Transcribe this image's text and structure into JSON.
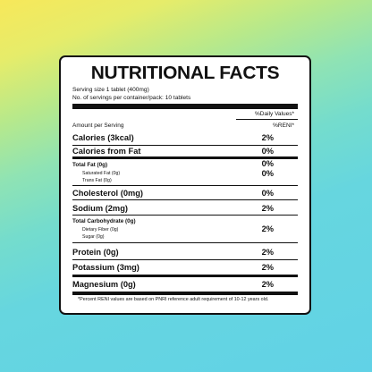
{
  "title": "NUTRITIONAL FACTS",
  "serving_size": "Serving size 1 tablet (400mg)",
  "servings_per_container": "No. of servings per container/pack: 10 tablets",
  "daily_values_header": "%Daily Values*",
  "amount_per_serving": "Amount per Serving",
  "reni_header": "%RENI*",
  "rows": {
    "calories": {
      "label": "Calories (3kcal)",
      "value": "2%"
    },
    "calories_from_fat": {
      "label": "Calories from Fat",
      "value": "0%"
    },
    "total_fat": {
      "label": "Total Fat (0g)",
      "value": "0%"
    },
    "saturated_fat": {
      "label": "Saturated Fat (0g)",
      "value": "0%"
    },
    "trans_fat": {
      "label": "Trans Fat (0g)"
    },
    "cholesterol": {
      "label": "Cholesterol (0mg)",
      "value": "0%"
    },
    "sodium": {
      "label": "Sodium (2mg)",
      "value": "2%"
    },
    "total_carbohydrate": {
      "label": "Total Carbohydrate (0g)"
    },
    "dietary_fiber": {
      "label": "Dietary Fiber (0g)",
      "value": "2%"
    },
    "sugar": {
      "label": "Sugar (0g)"
    },
    "protein": {
      "label": "Protein (0g)",
      "value": "2%"
    },
    "potassium": {
      "label": "Potassium (3mg)",
      "value": "2%"
    },
    "magnesium": {
      "label": "Magnesium (0g)",
      "value": "2%"
    }
  },
  "footnote": "*Percent RENI values are based on PNRI reference adult requirement of 10-12 years old.",
  "colors": {
    "label_background": "#ffffff",
    "ink": "#111111",
    "gradient_top": "#f7e85a",
    "gradient_bottom": "#61d2e6"
  }
}
